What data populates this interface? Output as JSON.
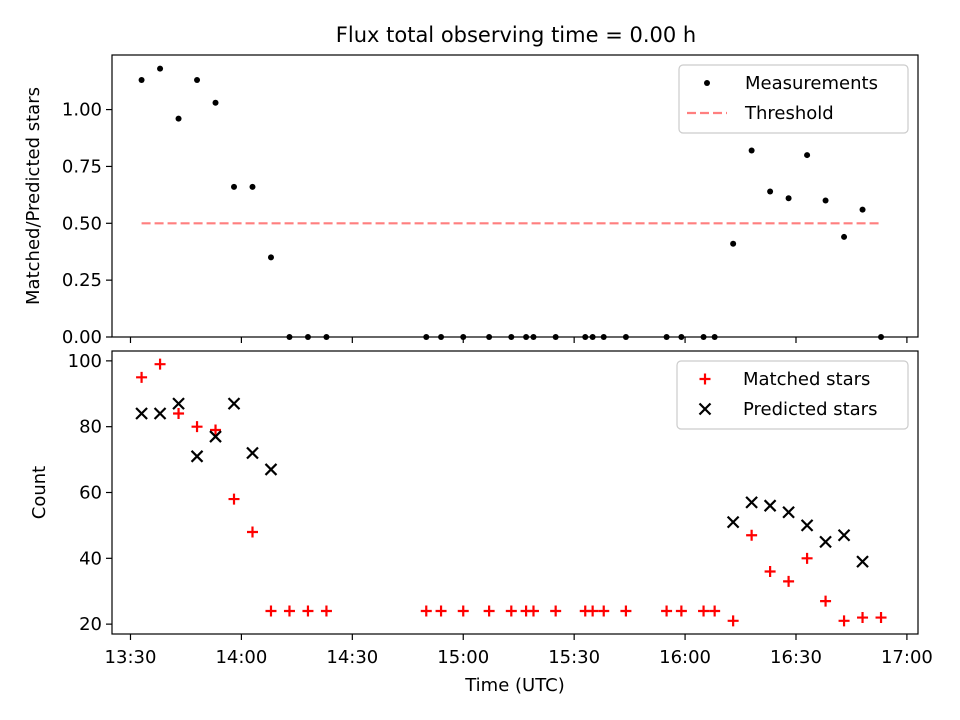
{
  "title": "Flux total observing time = 0.00 h",
  "colors": {
    "measurement": "#000000",
    "threshold": "#ff7f7f",
    "matched": "#ff0000",
    "predicted": "#000000"
  },
  "chart_data": [
    {
      "type": "scatter",
      "ylabel": "Matched/Predicted stars",
      "xlabel": "",
      "xlim": [
        "13:25",
        "17:03"
      ],
      "ylim": [
        0,
        1.24
      ],
      "yticks": [
        "0.00",
        "0.25",
        "0.50",
        "0.75",
        "1.00"
      ],
      "grid": false,
      "legend": "top-right",
      "series": [
        {
          "name": "Measurements",
          "marker": "dot",
          "x": [
            "13:33",
            "13:38",
            "13:43",
            "13:48",
            "13:53",
            "13:58",
            "14:03",
            "14:08",
            "14:13",
            "14:18",
            "14:23",
            "14:50",
            "14:54",
            "15:00",
            "15:07",
            "15:13",
            "15:17",
            "15:19",
            "15:25",
            "15:33",
            "15:35",
            "15:38",
            "15:44",
            "15:55",
            "15:59",
            "16:05",
            "16:08",
            "16:13",
            "16:18",
            "16:23",
            "16:28",
            "16:33",
            "16:38",
            "16:43",
            "16:48",
            "16:53"
          ],
          "y": [
            1.13,
            1.18,
            0.96,
            1.13,
            1.03,
            0.66,
            0.66,
            0.35,
            0,
            0,
            0,
            0,
            0,
            0,
            0,
            0,
            0,
            0,
            0,
            0,
            0,
            0,
            0,
            0,
            0,
            0,
            0,
            0.41,
            0.82,
            0.64,
            0.61,
            0.8,
            0.6,
            0.44,
            0.56,
            0
          ]
        },
        {
          "name": "Threshold",
          "style": "dashed",
          "x": [
            "13:33",
            "16:53"
          ],
          "y": [
            0.5,
            0.5
          ]
        }
      ]
    },
    {
      "type": "scatter",
      "ylabel": "Count",
      "xlabel": "Time (UTC)",
      "xlim": [
        "13:25",
        "17:03"
      ],
      "ylim": [
        17,
        103
      ],
      "yticks": [
        "20",
        "40",
        "60",
        "80",
        "100"
      ],
      "xticks": [
        "13:30",
        "14:00",
        "14:30",
        "15:00",
        "15:30",
        "16:00",
        "16:30",
        "17:00"
      ],
      "grid": false,
      "legend": "top-right",
      "series": [
        {
          "name": "Matched stars",
          "marker": "plus",
          "x": [
            "13:33",
            "13:38",
            "13:43",
            "13:48",
            "13:53",
            "13:58",
            "14:03",
            "14:08",
            "14:13",
            "14:18",
            "14:23",
            "14:50",
            "14:54",
            "15:00",
            "15:07",
            "15:13",
            "15:17",
            "15:19",
            "15:25",
            "15:33",
            "15:35",
            "15:38",
            "15:44",
            "15:55",
            "15:59",
            "16:05",
            "16:08",
            "16:13",
            "16:18",
            "16:23",
            "16:28",
            "16:33",
            "16:38",
            "16:43",
            "16:48",
            "16:53"
          ],
          "y": [
            95,
            99,
            84,
            80,
            79,
            58,
            48,
            24,
            24,
            24,
            24,
            24,
            24,
            24,
            24,
            24,
            24,
            24,
            24,
            24,
            24,
            24,
            24,
            24,
            24,
            24,
            24,
            21,
            47,
            36,
            33,
            40,
            27,
            21,
            22,
            22
          ]
        },
        {
          "name": "Predicted stars",
          "marker": "x",
          "x": [
            "13:33",
            "13:38",
            "13:43",
            "13:48",
            "13:53",
            "13:58",
            "14:03",
            "14:08",
            "16:13",
            "16:18",
            "16:23",
            "16:28",
            "16:33",
            "16:38",
            "16:43",
            "16:48"
          ],
          "y": [
            84,
            84,
            87,
            71,
            77,
            87,
            72,
            67,
            51,
            57,
            56,
            54,
            50,
            45,
            47,
            39
          ]
        }
      ]
    }
  ]
}
